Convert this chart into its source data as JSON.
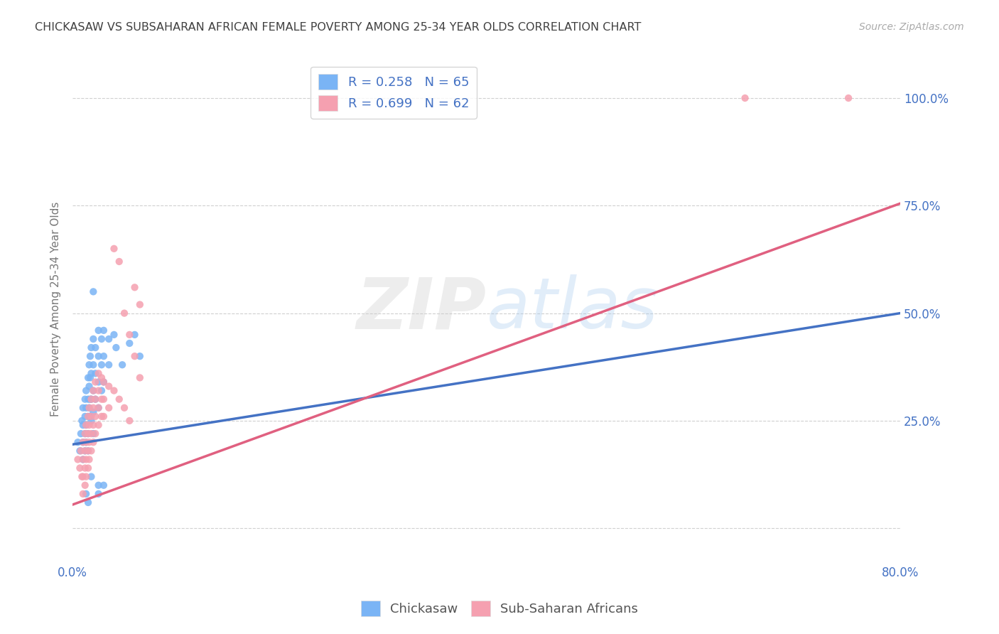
{
  "title": "CHICKASAW VS SUBSAHARAN AFRICAN FEMALE POVERTY AMONG 25-34 YEAR OLDS CORRELATION CHART",
  "source": "Source: ZipAtlas.com",
  "ylabel": "Female Poverty Among 25-34 Year Olds",
  "xlim": [
    0.0,
    0.8
  ],
  "ylim": [
    -0.08,
    1.1
  ],
  "xticks": [
    0.0,
    0.2,
    0.4,
    0.6,
    0.8
  ],
  "xticklabels_show": [
    "0.0%",
    "80.0%"
  ],
  "ytick_positions": [
    0.0,
    0.25,
    0.5,
    0.75,
    1.0
  ],
  "ytick_labels_right": [
    "",
    "25.0%",
    "50.0%",
    "75.0%",
    "100.0%"
  ],
  "background_color": "#ffffff",
  "watermark": "ZIPatlas",
  "legend_r1": "R = 0.258",
  "legend_n1": "N = 65",
  "legend_r2": "R = 0.699",
  "legend_n2": "N = 62",
  "chickasaw_color": "#7ab4f5",
  "subsaharan_color": "#f5a0b0",
  "trendline1_color": "#4472c4",
  "trendline2_color": "#e06080",
  "title_color": "#404040",
  "axis_label_color": "#4472c4",
  "grid_color": "#d0d0d0",
  "trendline1_x": [
    0.0,
    0.8
  ],
  "trendline1_y": [
    0.195,
    0.5
  ],
  "trendline2_x": [
    0.0,
    0.8
  ],
  "trendline2_y": [
    0.055,
    0.755
  ],
  "chickasaw_scatter": [
    [
      0.005,
      0.2
    ],
    [
      0.007,
      0.18
    ],
    [
      0.008,
      0.22
    ],
    [
      0.009,
      0.25
    ],
    [
      0.01,
      0.28
    ],
    [
      0.01,
      0.24
    ],
    [
      0.01,
      0.2
    ],
    [
      0.01,
      0.16
    ],
    [
      0.012,
      0.3
    ],
    [
      0.012,
      0.26
    ],
    [
      0.012,
      0.22
    ],
    [
      0.012,
      0.18
    ],
    [
      0.013,
      0.32
    ],
    [
      0.013,
      0.28
    ],
    [
      0.013,
      0.24
    ],
    [
      0.013,
      0.2
    ],
    [
      0.015,
      0.35
    ],
    [
      0.015,
      0.3
    ],
    [
      0.015,
      0.26
    ],
    [
      0.015,
      0.22
    ],
    [
      0.015,
      0.18
    ],
    [
      0.016,
      0.38
    ],
    [
      0.016,
      0.33
    ],
    [
      0.016,
      0.28
    ],
    [
      0.017,
      0.4
    ],
    [
      0.017,
      0.35
    ],
    [
      0.017,
      0.3
    ],
    [
      0.017,
      0.26
    ],
    [
      0.018,
      0.42
    ],
    [
      0.018,
      0.36
    ],
    [
      0.018,
      0.3
    ],
    [
      0.018,
      0.25
    ],
    [
      0.02,
      0.44
    ],
    [
      0.02,
      0.38
    ],
    [
      0.02,
      0.32
    ],
    [
      0.02,
      0.27
    ],
    [
      0.02,
      0.22
    ],
    [
      0.022,
      0.42
    ],
    [
      0.022,
      0.36
    ],
    [
      0.022,
      0.3
    ],
    [
      0.025,
      0.46
    ],
    [
      0.025,
      0.4
    ],
    [
      0.025,
      0.34
    ],
    [
      0.025,
      0.28
    ],
    [
      0.028,
      0.44
    ],
    [
      0.028,
      0.38
    ],
    [
      0.028,
      0.32
    ],
    [
      0.03,
      0.46
    ],
    [
      0.03,
      0.4
    ],
    [
      0.03,
      0.34
    ],
    [
      0.035,
      0.44
    ],
    [
      0.035,
      0.38
    ],
    [
      0.04,
      0.45
    ],
    [
      0.042,
      0.42
    ],
    [
      0.048,
      0.38
    ],
    [
      0.055,
      0.43
    ],
    [
      0.06,
      0.45
    ],
    [
      0.065,
      0.4
    ],
    [
      0.02,
      0.55
    ],
    [
      0.013,
      0.08
    ],
    [
      0.015,
      0.06
    ],
    [
      0.025,
      0.1
    ],
    [
      0.025,
      0.08
    ],
    [
      0.03,
      0.1
    ],
    [
      0.018,
      0.12
    ]
  ],
  "subsaharan_scatter": [
    [
      0.005,
      0.16
    ],
    [
      0.007,
      0.14
    ],
    [
      0.008,
      0.18
    ],
    [
      0.009,
      0.12
    ],
    [
      0.01,
      0.2
    ],
    [
      0.01,
      0.16
    ],
    [
      0.01,
      0.12
    ],
    [
      0.01,
      0.08
    ],
    [
      0.012,
      0.22
    ],
    [
      0.012,
      0.18
    ],
    [
      0.012,
      0.14
    ],
    [
      0.012,
      0.1
    ],
    [
      0.013,
      0.24
    ],
    [
      0.013,
      0.2
    ],
    [
      0.013,
      0.16
    ],
    [
      0.013,
      0.12
    ],
    [
      0.015,
      0.26
    ],
    [
      0.015,
      0.22
    ],
    [
      0.015,
      0.18
    ],
    [
      0.015,
      0.14
    ],
    [
      0.016,
      0.28
    ],
    [
      0.016,
      0.24
    ],
    [
      0.016,
      0.2
    ],
    [
      0.016,
      0.16
    ],
    [
      0.018,
      0.3
    ],
    [
      0.018,
      0.26
    ],
    [
      0.018,
      0.22
    ],
    [
      0.018,
      0.18
    ],
    [
      0.02,
      0.32
    ],
    [
      0.02,
      0.28
    ],
    [
      0.02,
      0.24
    ],
    [
      0.02,
      0.2
    ],
    [
      0.022,
      0.34
    ],
    [
      0.022,
      0.3
    ],
    [
      0.022,
      0.26
    ],
    [
      0.022,
      0.22
    ],
    [
      0.025,
      0.36
    ],
    [
      0.025,
      0.32
    ],
    [
      0.025,
      0.28
    ],
    [
      0.025,
      0.24
    ],
    [
      0.028,
      0.35
    ],
    [
      0.028,
      0.3
    ],
    [
      0.028,
      0.26
    ],
    [
      0.03,
      0.34
    ],
    [
      0.03,
      0.3
    ],
    [
      0.03,
      0.26
    ],
    [
      0.035,
      0.33
    ],
    [
      0.035,
      0.28
    ],
    [
      0.04,
      0.32
    ],
    [
      0.045,
      0.3
    ],
    [
      0.05,
      0.28
    ],
    [
      0.055,
      0.25
    ],
    [
      0.04,
      0.65
    ],
    [
      0.045,
      0.62
    ],
    [
      0.05,
      0.5
    ],
    [
      0.055,
      0.45
    ],
    [
      0.06,
      0.4
    ],
    [
      0.065,
      0.35
    ],
    [
      0.06,
      0.56
    ],
    [
      0.065,
      0.52
    ],
    [
      0.65,
      1.0
    ],
    [
      0.75,
      1.0
    ]
  ]
}
